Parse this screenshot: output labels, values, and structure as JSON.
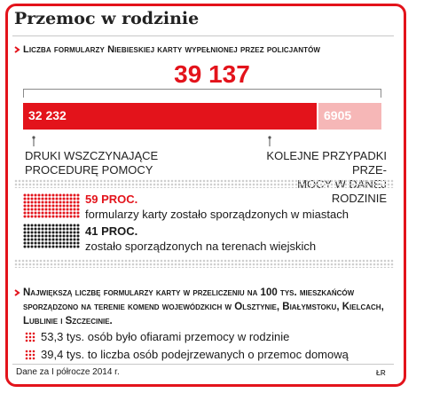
{
  "title": "Przemoc w rodzinie",
  "chart_data": {
    "type": "bar",
    "title": "Liczba formularzy Niebieskiej karty wypełnionej przez policjantów",
    "total": "39 137",
    "categories": [
      "DRUKI WSZCZYNAJĄCE PROCEDURĘ POMOCY",
      "KOLEJNE PRZYPADKI PRZEMOCY W DANEJ RODZINIE"
    ],
    "values": [
      32232,
      6905
    ],
    "value_labels": [
      "32 232",
      "6905"
    ],
    "category_lines": [
      [
        "DRUKI WSZCZYNAJĄCE",
        "PROCEDURĘ POMOCY"
      ],
      [
        "KOLEJNE PRZYPADKI PRZE-",
        "MOCY W DANEJ RODZINIE"
      ]
    ],
    "colors": [
      "#e3131b",
      "#f6b7b7"
    ]
  },
  "proportions": [
    {
      "value": "59 PROC.",
      "text": "formularzy karty zostało sporządzonych w miastach",
      "color": "#e3131b"
    },
    {
      "value": "41 PROC.",
      "text": "zostało sporządzonych na terenach wiejskich",
      "color": "#1a1a1a"
    }
  ],
  "note": "Największą liczbę formularzy karty w przeliczeniu na 100 tys. mieszkańców sporządzono na terenie komend wojewódzkich w Olsztynie, Białymstoku, Kielcach, Lublinie i Szczecinie.",
  "facts": [
    "53,3 tys. osób było ofiarami przemocy w rodzinie",
    "39,4 tys. to liczba osób podejrzewanych o przemoc domową"
  ],
  "footer": "Dane za I półrocze 2014 r.",
  "credit": "ŁR"
}
